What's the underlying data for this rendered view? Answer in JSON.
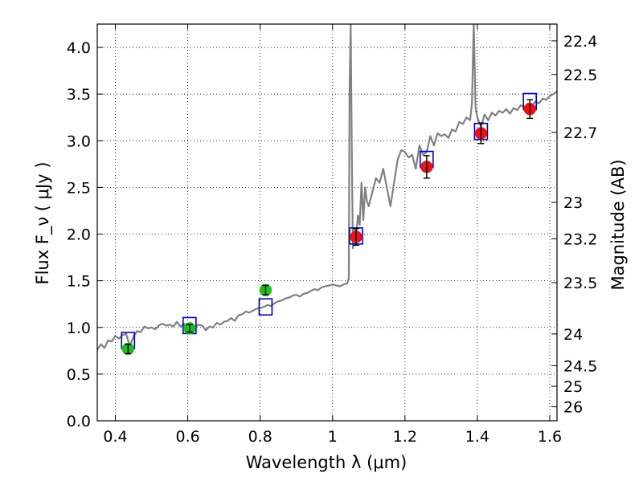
{
  "chart_data": {
    "type": "scatter",
    "xlabel": "Wavelength  λ (μm)",
    "ylabel": "Flux  F_ν  ( μJy )",
    "ylabel_right": "Magnitude (AB)",
    "xlim": [
      0.35,
      1.62
    ],
    "ylim": [
      0.0,
      4.25
    ],
    "grid": true,
    "x_ticks": [
      0.4,
      0.6,
      0.8,
      1.0,
      1.2,
      1.4,
      1.6
    ],
    "x_tick_labels": [
      "0.4",
      "0.6",
      "0.8",
      "1",
      "1.2",
      "1.4",
      "1.6"
    ],
    "y_ticks": [
      0.0,
      0.5,
      1.0,
      1.5,
      2.0,
      2.5,
      3.0,
      3.5,
      4.0
    ],
    "y_tick_labels": [
      "0.0",
      "0.5",
      "1.0",
      "1.5",
      "2.0",
      "2.5",
      "3.0",
      "3.5",
      "4.0"
    ],
    "right_ticks": [
      {
        "label": "22.4",
        "flux": 4.07
      },
      {
        "label": "22.5",
        "flux": 3.71
      },
      {
        "label": "22.7",
        "flux": 3.09
      },
      {
        "label": "23",
        "flux": 2.34
      },
      {
        "label": "23.2",
        "flux": 1.95
      },
      {
        "label": "23.5",
        "flux": 1.48
      },
      {
        "label": "24",
        "flux": 0.93
      },
      {
        "label": "24.5",
        "flux": 0.59
      },
      {
        "label": "25",
        "flux": 0.37
      },
      {
        "label": "26",
        "flux": 0.15
      }
    ],
    "series": [
      {
        "kind": "line",
        "color": "#808080",
        "points": [
          [
            0.35,
            0.76
          ],
          [
            0.36,
            0.82
          ],
          [
            0.37,
            0.78
          ],
          [
            0.38,
            0.86
          ],
          [
            0.39,
            0.85
          ],
          [
            0.4,
            0.91
          ],
          [
            0.41,
            0.88
          ],
          [
            0.42,
            0.92
          ],
          [
            0.43,
            0.93
          ],
          [
            0.44,
            0.8
          ],
          [
            0.45,
            0.9
          ],
          [
            0.46,
            0.96
          ],
          [
            0.47,
            0.95
          ],
          [
            0.48,
            1.01
          ],
          [
            0.49,
            0.99
          ],
          [
            0.5,
            1.0
          ],
          [
            0.51,
            0.98
          ],
          [
            0.52,
            1.02
          ],
          [
            0.53,
            1.04
          ],
          [
            0.54,
            1.02
          ],
          [
            0.55,
            1.03
          ],
          [
            0.56,
            1.01
          ],
          [
            0.57,
            1.06
          ],
          [
            0.58,
            1.01
          ],
          [
            0.59,
            1.04
          ],
          [
            0.6,
            1.0
          ],
          [
            0.61,
            1.03
          ],
          [
            0.62,
            1.01
          ],
          [
            0.63,
            1.03
          ],
          [
            0.64,
            1.02
          ],
          [
            0.65,
            0.97
          ],
          [
            0.66,
            1.01
          ],
          [
            0.67,
            1.0
          ],
          [
            0.68,
            1.05
          ],
          [
            0.69,
            1.03
          ],
          [
            0.7,
            1.06
          ],
          [
            0.71,
            1.07
          ],
          [
            0.72,
            1.1
          ],
          [
            0.73,
            1.07
          ],
          [
            0.74,
            1.13
          ],
          [
            0.75,
            1.14
          ],
          [
            0.76,
            1.17
          ],
          [
            0.77,
            1.16
          ],
          [
            0.78,
            1.18
          ],
          [
            0.79,
            1.2
          ],
          [
            0.8,
            1.21
          ],
          [
            0.81,
            1.22
          ],
          [
            0.82,
            1.24
          ],
          [
            0.83,
            1.23
          ],
          [
            0.84,
            1.26
          ],
          [
            0.85,
            1.28
          ],
          [
            0.86,
            1.29
          ],
          [
            0.87,
            1.31
          ],
          [
            0.88,
            1.32
          ],
          [
            0.89,
            1.34
          ],
          [
            0.9,
            1.35
          ],
          [
            0.91,
            1.33
          ],
          [
            0.92,
            1.36
          ],
          [
            0.93,
            1.37
          ],
          [
            0.94,
            1.39
          ],
          [
            0.95,
            1.41
          ],
          [
            0.96,
            1.4
          ],
          [
            0.97,
            1.43
          ],
          [
            0.98,
            1.44
          ],
          [
            0.99,
            1.45
          ],
          [
            1.0,
            1.46
          ],
          [
            1.01,
            1.45
          ],
          [
            1.02,
            1.44
          ],
          [
            1.03,
            1.46
          ],
          [
            1.04,
            1.47
          ],
          [
            1.045,
            1.52
          ],
          [
            1.047,
            3.5
          ],
          [
            1.05,
            4.25
          ],
          [
            1.053,
            3.0
          ],
          [
            1.056,
            1.85
          ],
          [
            1.06,
            2.05
          ],
          [
            1.065,
            1.95
          ],
          [
            1.07,
            2.2
          ],
          [
            1.075,
            2.1
          ],
          [
            1.08,
            2.55
          ],
          [
            1.085,
            2.15
          ],
          [
            1.09,
            2.5
          ],
          [
            1.095,
            2.35
          ],
          [
            1.1,
            2.3
          ],
          [
            1.11,
            2.45
          ],
          [
            1.12,
            2.6
          ],
          [
            1.13,
            2.55
          ],
          [
            1.14,
            2.7
          ],
          [
            1.15,
            2.5
          ],
          [
            1.16,
            2.3
          ],
          [
            1.17,
            2.55
          ],
          [
            1.18,
            2.8
          ],
          [
            1.19,
            2.9
          ],
          [
            1.2,
            2.88
          ],
          [
            1.21,
            2.82
          ],
          [
            1.22,
            2.85
          ],
          [
            1.23,
            2.7
          ],
          [
            1.24,
            2.95
          ],
          [
            1.25,
            2.85
          ],
          [
            1.26,
            2.88
          ],
          [
            1.27,
            3.05
          ],
          [
            1.28,
            2.95
          ],
          [
            1.29,
            3.08
          ],
          [
            1.3,
            3.05
          ],
          [
            1.31,
            3.07
          ],
          [
            1.32,
            3.03
          ],
          [
            1.33,
            3.12
          ],
          [
            1.34,
            3.1
          ],
          [
            1.35,
            3.2
          ],
          [
            1.36,
            3.18
          ],
          [
            1.37,
            3.25
          ],
          [
            1.38,
            3.22
          ],
          [
            1.385,
            3.4
          ],
          [
            1.39,
            4.25
          ],
          [
            1.395,
            3.35
          ],
          [
            1.4,
            3.25
          ],
          [
            1.41,
            3.15
          ],
          [
            1.42,
            3.28
          ],
          [
            1.43,
            3.22
          ],
          [
            1.44,
            3.3
          ],
          [
            1.45,
            3.27
          ],
          [
            1.46,
            3.32
          ],
          [
            1.47,
            3.3
          ],
          [
            1.48,
            3.34
          ],
          [
            1.49,
            3.29
          ],
          [
            1.5,
            3.35
          ],
          [
            1.51,
            3.33
          ],
          [
            1.52,
            3.38
          ],
          [
            1.53,
            3.36
          ],
          [
            1.54,
            3.4
          ],
          [
            1.55,
            3.37
          ],
          [
            1.56,
            3.42
          ],
          [
            1.57,
            3.4
          ],
          [
            1.58,
            3.45
          ],
          [
            1.59,
            3.44
          ],
          [
            1.6,
            3.48
          ],
          [
            1.61,
            3.5
          ],
          [
            1.62,
            3.53
          ]
        ]
      },
      {
        "kind": "squares",
        "color": "#0000cc",
        "points": [
          [
            0.435,
            0.86
          ],
          [
            0.605,
            1.02
          ],
          [
            0.815,
            1.22
          ],
          [
            1.065,
            1.98
          ],
          [
            1.26,
            2.8
          ],
          [
            1.41,
            3.1
          ],
          [
            1.545,
            3.42
          ]
        ]
      },
      {
        "kind": "points",
        "color": "#22bb22",
        "points": [
          [
            0.435,
            0.77,
            0.05
          ],
          [
            0.605,
            0.99,
            0.04
          ],
          [
            0.815,
            1.4,
            0.05
          ]
        ]
      },
      {
        "kind": "points",
        "color": "#ee1111",
        "points": [
          [
            1.065,
            1.97,
            0.09
          ],
          [
            1.26,
            2.72,
            0.12
          ],
          [
            1.41,
            3.08,
            0.11
          ],
          [
            1.545,
            3.34,
            0.1
          ]
        ]
      }
    ]
  }
}
